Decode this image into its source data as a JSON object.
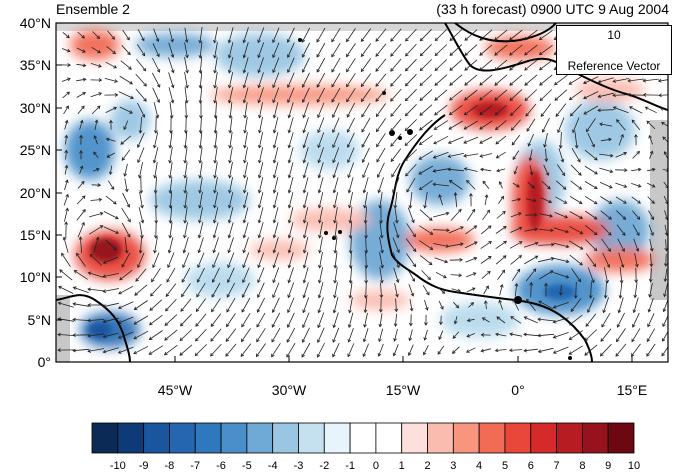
{
  "title": {
    "left": "Ensemble 2",
    "right": "(33 h forecast) 0900 UTC 9 Aug 2004"
  },
  "axes": {
    "lat_labels": [
      "40°N",
      "35°N",
      "30°N",
      "25°N",
      "20°N",
      "15°N",
      "10°N",
      "5°N",
      "0°"
    ],
    "lon_labels": [
      "45°W",
      "30°W",
      "15°W",
      "0°",
      "15°E"
    ]
  },
  "reference_vector": {
    "value": "10",
    "label": "Reference Vector"
  },
  "colorbar": {
    "labels": [
      "-10",
      "-9",
      "-8",
      "-7",
      "-6",
      "-5",
      "-4",
      "-3",
      "-2",
      "-1",
      "0",
      "1",
      "2",
      "3",
      "4",
      "5",
      "6",
      "7",
      "8",
      "9",
      "10"
    ],
    "colors": [
      "#0b2a55",
      "#0e3a78",
      "#1a55a0",
      "#2467b0",
      "#2e78bd",
      "#4a8fc9",
      "#6fa9d6",
      "#9ac6e3",
      "#c5e1f0",
      "#e8f4fb",
      "#ffffff",
      "#ffffff",
      "#fde0dc",
      "#fbbcb0",
      "#f8957f",
      "#f26b55",
      "#e8473a",
      "#d42a2a",
      "#b71c22",
      "#96121c",
      "#6d0812"
    ]
  },
  "map_colors": {
    "ocean": "#ffffff",
    "coast": "#000000",
    "red_strong": "#c0262a",
    "red_mid": "#ee6a58",
    "red_light": "#f9c0b4",
    "blue_strong": "#2e6fb4",
    "blue_mid": "#6fa8d4",
    "blue_light": "#b9dbee",
    "land_gray": "#c8c8c8"
  }
}
